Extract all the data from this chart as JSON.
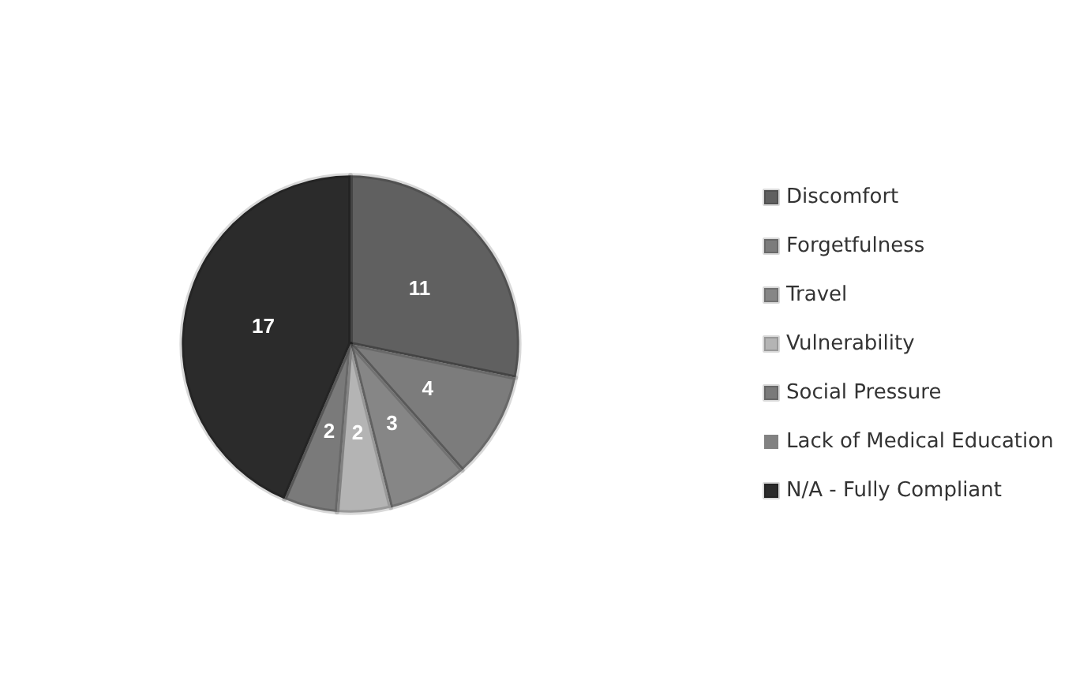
{
  "chart_data": {
    "type": "pie",
    "categories": [
      "Discomfort",
      "Forgetfulness",
      "Travel",
      "Vulnerability",
      "Social Pressure",
      "Lack of Medical Education",
      "N/A - Fully Compliant"
    ],
    "values": [
      11,
      4,
      3,
      2,
      2,
      0,
      17
    ],
    "value_labels": [
      "11",
      "4",
      "3",
      "2",
      "2",
      null,
      "17"
    ],
    "colors": [
      "#606060",
      "#7c7c7c",
      "#868686",
      "#b4b4b4",
      "#7a7a7a",
      "#828282",
      "#2b2b2b"
    ],
    "legend": "right"
  }
}
